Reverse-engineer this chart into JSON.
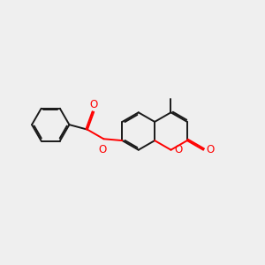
{
  "bg_color": "#efefef",
  "bond_color": "#1a1a1a",
  "heteroatom_color": "#ff0000",
  "bond_width": 1.4,
  "dbo": 0.055,
  "font_size": 8.5,
  "figsize": [
    3.0,
    3.0
  ],
  "dpi": 100,
  "xlim": [
    0,
    10
  ],
  "ylim": [
    0,
    10
  ]
}
